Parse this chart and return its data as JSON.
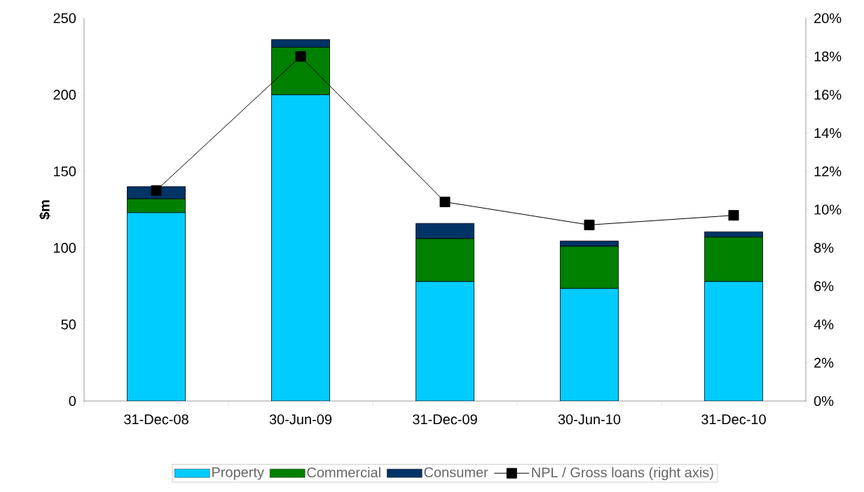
{
  "chart_data": {
    "type": "bar",
    "stacked": true,
    "ylabel": "$m",
    "categories": [
      "31-Dec-08",
      "30-Jun-09",
      "31-Dec-09",
      "30-Jun-10",
      "31-Dec-10"
    ],
    "ylim": [
      0,
      250
    ],
    "yticks": [
      0,
      50,
      100,
      150,
      200,
      250
    ],
    "y2lim": [
      0,
      20
    ],
    "y2ticks": [
      {
        "value": 0,
        "label": "0%"
      },
      {
        "value": 2,
        "label": "2%"
      },
      {
        "value": 4,
        "label": "4%"
      },
      {
        "value": 6,
        "label": "6%"
      },
      {
        "value": 8,
        "label": "8%"
      },
      {
        "value": 10,
        "label": "10%"
      },
      {
        "value": 12,
        "label": "12%"
      },
      {
        "value": 14,
        "label": "14%"
      },
      {
        "value": 16,
        "label": "16%"
      },
      {
        "value": 18,
        "label": "18%"
      },
      {
        "value": 20,
        "label": "20%"
      }
    ],
    "legend": "bottom",
    "marker": "square",
    "series": [
      {
        "name": "Property",
        "color": "#00ccff",
        "values": [
          123,
          200,
          78,
          73.5,
          78
        ]
      },
      {
        "name": "Commercial",
        "color": "#008000",
        "values": [
          9,
          31,
          28,
          27.5,
          29
        ]
      },
      {
        "name": "Consumer",
        "color": "#003366",
        "values": [
          8,
          5,
          10,
          3.5,
          3.5
        ]
      },
      {
        "name": "NPL / Gross loans (right axis)",
        "type": "line",
        "axis": "y2",
        "color": "#000000",
        "values": [
          11.0,
          18.0,
          10.4,
          9.2,
          9.7
        ]
      }
    ]
  }
}
